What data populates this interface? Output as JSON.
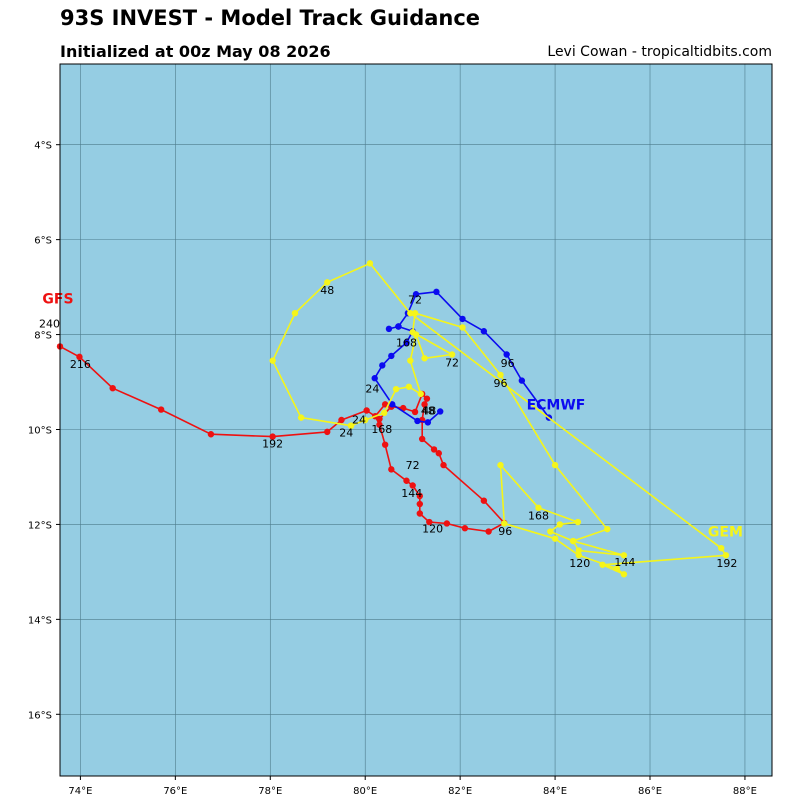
{
  "title": "93S INVEST - Model Track Guidance",
  "subtitle": "Initialized at 00z May 08 2026",
  "credit": "Levi Cowan - tropicaltidbits.com",
  "colors": {
    "ocean": "#95cde3",
    "grid": "#4d7b8c",
    "GFS": "#ee1111",
    "ECMWF": "#0b0bf0",
    "GEM": "#f5f51a"
  },
  "chart_data": {
    "type": "scatter",
    "xlim": [
      73.57,
      88.57
    ],
    "ylim": [
      -17.3,
      -2.3
    ],
    "x_ticks": [
      {
        "value": 74,
        "label": "74°E"
      },
      {
        "value": 76,
        "label": "76°E"
      },
      {
        "value": 78,
        "label": "78°E"
      },
      {
        "value": 80,
        "label": "80°E"
      },
      {
        "value": 82,
        "label": "82°E"
      },
      {
        "value": 84,
        "label": "84°E"
      },
      {
        "value": 86,
        "label": "86°E"
      },
      {
        "value": 88,
        "label": "88°E"
      }
    ],
    "y_ticks": [
      {
        "value": -4,
        "label": "4°S"
      },
      {
        "value": -6,
        "label": "6°S"
      },
      {
        "value": -8,
        "label": "8°S"
      },
      {
        "value": -10,
        "label": "10°S"
      },
      {
        "value": -12,
        "label": "12°S"
      },
      {
        "value": -14,
        "label": "14°S"
      },
      {
        "value": -16,
        "label": "16°S"
      }
    ],
    "grid": true,
    "series": [
      {
        "name": "GFS",
        "color": "#ee1111",
        "points": [
          [
            80.42,
            -9.47
          ],
          [
            80.21,
            -9.72
          ],
          [
            80.3,
            -9.9
          ],
          [
            80.42,
            -10.32
          ],
          [
            80.55,
            -10.84
          ],
          [
            80.87,
            -11.08
          ],
          [
            81.0,
            -11.18
          ],
          [
            81.15,
            -11.4
          ],
          [
            81.15,
            -11.57
          ],
          [
            81.15,
            -11.77
          ],
          [
            81.35,
            -11.95
          ],
          [
            81.72,
            -11.98
          ],
          [
            82.1,
            -12.08
          ],
          [
            82.6,
            -12.15
          ],
          [
            82.93,
            -11.97
          ],
          [
            82.5,
            -11.5
          ],
          [
            81.65,
            -10.75
          ],
          [
            81.55,
            -10.5
          ],
          [
            81.45,
            -10.42
          ],
          [
            81.2,
            -10.2
          ],
          [
            81.2,
            -9.8
          ],
          [
            81.25,
            -9.47
          ],
          [
            81.3,
            -9.35
          ],
          [
            81.2,
            -9.25
          ],
          [
            81.05,
            -9.63
          ],
          [
            80.8,
            -9.55
          ],
          [
            80.55,
            -9.52
          ],
          [
            80.3,
            -9.78
          ],
          [
            80.03,
            -9.6
          ],
          [
            79.5,
            -9.8
          ],
          [
            79.2,
            -10.05
          ],
          [
            78.05,
            -10.15
          ],
          [
            76.75,
            -10.1
          ],
          [
            75.7,
            -9.58
          ],
          [
            74.68,
            -9.13
          ],
          [
            73.98,
            -8.47
          ],
          [
            73.57,
            -8.25
          ]
        ],
        "labels": [
          {
            "text": "24",
            "at": [
              79.87,
              -9.87
            ]
          },
          {
            "text": "72",
            "at": [
              81.0,
              -10.83
            ]
          },
          {
            "text": "144",
            "at": [
              80.98,
              -11.42
            ]
          },
          {
            "text": "120",
            "at": [
              81.42,
              -12.17
            ]
          },
          {
            "text": "96",
            "at": [
              82.95,
              -12.22
            ]
          },
          {
            "text": "48",
            "at": [
              81.32,
              -9.68
            ]
          },
          {
            "text": "168",
            "at": [
              80.35,
              -10.07
            ]
          },
          {
            "text": "192",
            "at": [
              78.05,
              -10.38
            ]
          },
          {
            "text": "216",
            "at": [
              74.0,
              -8.7
            ]
          },
          {
            "text": "240",
            "at": [
              73.35,
              -7.85
            ]
          }
        ],
        "model_label": {
          "text": "GFS",
          "at": [
            73.2,
            -7.35
          ]
        }
      },
      {
        "name": "ECMWF",
        "color": "#0b0bf0",
        "points": [
          [
            81.58,
            -9.62
          ],
          [
            81.32,
            -9.85
          ],
          [
            81.1,
            -9.82
          ],
          [
            80.57,
            -9.47
          ],
          [
            80.2,
            -8.92
          ],
          [
            80.36,
            -8.65
          ],
          [
            80.55,
            -8.45
          ],
          [
            80.87,
            -8.17
          ],
          [
            81.0,
            -7.93
          ],
          [
            80.7,
            -7.83
          ],
          [
            80.5,
            -7.88
          ],
          [
            80.7,
            -7.83
          ],
          [
            80.9,
            -7.55
          ],
          [
            81.07,
            -7.15
          ],
          [
            81.5,
            -7.1
          ],
          [
            82.05,
            -7.67
          ],
          [
            82.5,
            -7.93
          ],
          [
            82.98,
            -8.42
          ],
          [
            83.3,
            -8.97
          ],
          [
            83.87,
            -9.75
          ]
        ],
        "labels": [
          {
            "text": "24",
            "at": [
              80.15,
              -9.22
            ]
          },
          {
            "text": "48",
            "at": [
              81.35,
              -9.68
            ]
          },
          {
            "text": "72",
            "at": [
              81.05,
              -7.35
            ]
          },
          {
            "text": "96",
            "at": [
              83.0,
              -8.68
            ]
          },
          {
            "text": "168",
            "at": [
              80.87,
              -8.25
            ]
          }
        ],
        "model_label": {
          "text": "ECMWF",
          "at": [
            83.4,
            -9.58
          ]
        }
      },
      {
        "name": "GEM",
        "color": "#f5f51a",
        "points": [
          [
            79.7,
            -9.92
          ],
          [
            80.0,
            -9.8
          ],
          [
            80.4,
            -9.65
          ],
          [
            80.65,
            -9.15
          ],
          [
            80.92,
            -9.1
          ],
          [
            81.17,
            -9.25
          ],
          [
            80.95,
            -8.55
          ],
          [
            81.07,
            -8.0
          ],
          [
            81.25,
            -8.5
          ],
          [
            81.83,
            -8.42
          ],
          [
            81.0,
            -7.95
          ],
          [
            81.05,
            -7.55
          ],
          [
            82.05,
            -7.85
          ],
          [
            82.85,
            -8.85
          ],
          [
            84.0,
            -10.75
          ],
          [
            85.1,
            -12.1
          ],
          [
            84.38,
            -12.35
          ],
          [
            84.5,
            -12.55
          ],
          [
            85.45,
            -12.65
          ],
          [
            84.38,
            -12.35
          ],
          [
            83.9,
            -12.15
          ],
          [
            84.1,
            -12.0
          ],
          [
            84.48,
            -11.95
          ],
          [
            83.65,
            -11.65
          ],
          [
            82.85,
            -10.75
          ],
          [
            82.93,
            -11.98
          ],
          [
            84.0,
            -12.3
          ],
          [
            84.5,
            -12.65
          ],
          [
            85.3,
            -12.93
          ],
          [
            85.45,
            -13.05
          ],
          [
            85.0,
            -12.85
          ],
          [
            87.6,
            -12.65
          ],
          [
            87.5,
            -12.5
          ],
          [
            80.95,
            -7.55
          ],
          [
            80.1,
            -6.5
          ],
          [
            79.2,
            -6.9
          ],
          [
            78.52,
            -7.55
          ],
          [
            78.05,
            -8.55
          ],
          [
            78.65,
            -9.75
          ],
          [
            79.7,
            -9.92
          ]
        ],
        "labels": [
          {
            "text": "24",
            "at": [
              79.6,
              -10.15
            ]
          },
          {
            "text": "48",
            "at": [
              79.2,
              -7.15
            ]
          },
          {
            "text": "72",
            "at": [
              81.83,
              -8.67
            ]
          },
          {
            "text": "96",
            "at": [
              82.85,
              -9.1
            ]
          },
          {
            "text": "120",
            "at": [
              84.52,
              -12.9
            ]
          },
          {
            "text": "144",
            "at": [
              85.47,
              -12.88
            ]
          },
          {
            "text": "168",
            "at": [
              83.65,
              -11.9
            ]
          },
          {
            "text": "192",
            "at": [
              87.62,
              -12.9
            ]
          }
        ],
        "model_label": {
          "text": "GEM",
          "at": [
            87.22,
            -12.25
          ]
        }
      }
    ]
  }
}
